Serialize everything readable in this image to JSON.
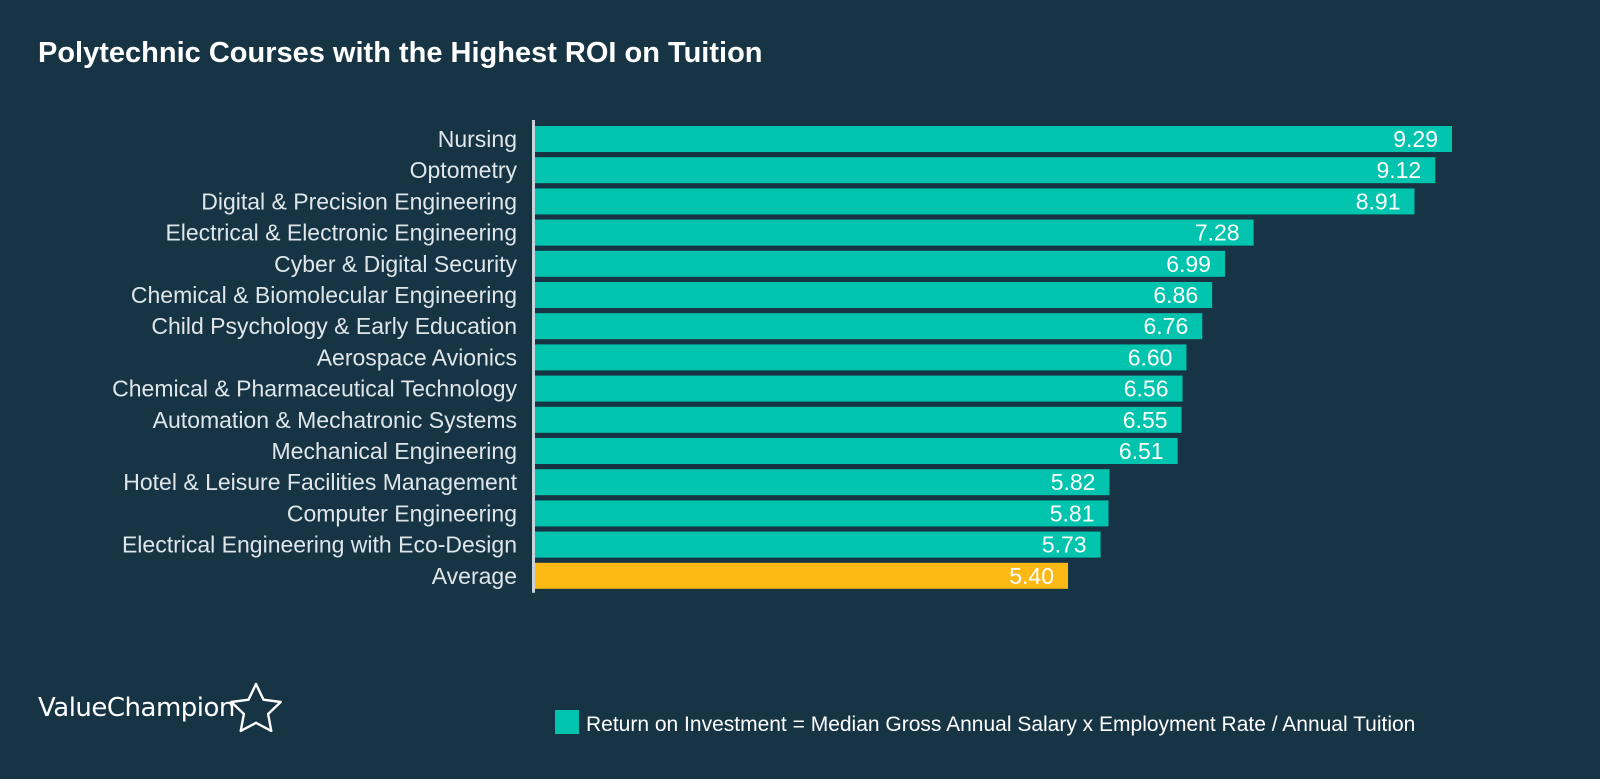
{
  "chart_data": {
    "type": "bar",
    "orientation": "horizontal",
    "title": "Polytechnic Courses with the Highest ROI on Tuition",
    "categories": [
      "Nursing",
      "Optometry",
      "Digital & Precision Engineering",
      "Electrical & Electronic Engineering",
      "Cyber & Digital Security",
      "Chemical & Biomolecular Engineering",
      "Child Psychology & Early Education",
      "Aerospace Avionics",
      "Chemical & Pharmaceutical Technology",
      "Automation & Mechatronic Systems",
      "Mechanical Engineering",
      "Hotel & Leisure Facilities Management",
      "Computer Engineering",
      "Electrical Engineering with Eco-Design",
      "Average"
    ],
    "values": [
      9.29,
      9.12,
      8.91,
      7.28,
      6.99,
      6.86,
      6.76,
      6.6,
      6.56,
      6.55,
      6.51,
      5.82,
      5.81,
      5.73,
      5.4
    ],
    "value_labels": [
      "9.29",
      "9.12",
      "8.91",
      "7.28",
      "6.99",
      "6.86",
      "6.76",
      "6.60",
      "6.56",
      "6.55",
      "6.51",
      "5.82",
      "5.81",
      "5.73",
      "5.40"
    ],
    "xlim": [
      0,
      9.29
    ],
    "grid": false,
    "highlight_category": "Average",
    "colors": {
      "bar": "#00c4ae",
      "highlight": "#fdb913",
      "background": "#163444",
      "axis": "#c8d3d9"
    },
    "legend": {
      "position": "bottom-right",
      "label": "Return on Investment = Median Gross Annual Salary x Employment Rate / Annual Tuition"
    }
  },
  "brand": {
    "name": "ValueChampion",
    "icon": "star-outline-icon"
  }
}
